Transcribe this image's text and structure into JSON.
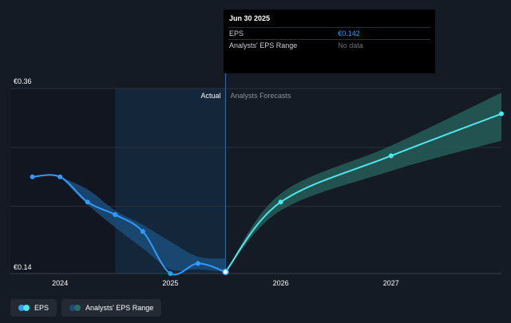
{
  "colors": {
    "background": "#151b24",
    "eps_actual": "#2f9bff",
    "eps_forecast": "#4ee7ea",
    "forecast_band": "#2a6b65",
    "actual_band": "#1b4d7a"
  },
  "tooltip": {
    "date": "Jun 30 2025",
    "rows": [
      {
        "label": "EPS",
        "value": "€0.142"
      },
      {
        "label": "Analysts' EPS Range",
        "value": "No data"
      }
    ]
  },
  "labels": {
    "actual": "Actual",
    "forecast": "Analysts Forecasts"
  },
  "legend": [
    {
      "label": "EPS",
      "icon": "eps-dot-icon"
    },
    {
      "label": "Analysts' EPS Range",
      "icon": "range-dot-icon"
    }
  ],
  "chart_data": {
    "type": "line",
    "x_ticks": [
      "2024",
      "2025",
      "2026",
      "2027"
    ],
    "y_ticks": [
      "€0.36",
      "€0.14"
    ],
    "ylim": [
      0.14,
      0.36
    ],
    "xlim": [
      2023.55,
      2028.0
    ],
    "actual_divider_x": 2025.5,
    "eps_actual": [
      {
        "x": 2023.75,
        "y": 0.255
      },
      {
        "x": 2024.0,
        "y": 0.255
      },
      {
        "x": 2024.25,
        "y": 0.225
      },
      {
        "x": 2024.5,
        "y": 0.21
      },
      {
        "x": 2024.75,
        "y": 0.19
      },
      {
        "x": 2025.0,
        "y": 0.14
      },
      {
        "x": 2025.25,
        "y": 0.152
      },
      {
        "x": 2025.5,
        "y": 0.142
      }
    ],
    "eps_actual_range": [
      {
        "x": 2024.0,
        "low": 0.255,
        "high": 0.255
      },
      {
        "x": 2024.25,
        "low": 0.222,
        "high": 0.24
      },
      {
        "x": 2024.5,
        "low": 0.195,
        "high": 0.215
      },
      {
        "x": 2024.75,
        "low": 0.17,
        "high": 0.198
      },
      {
        "x": 2025.0,
        "low": 0.145,
        "high": 0.178
      },
      {
        "x": 2025.25,
        "low": 0.145,
        "high": 0.16
      },
      {
        "x": 2025.5,
        "low": 0.142,
        "high": 0.158
      }
    ],
    "eps_forecast": [
      {
        "x": 2025.5,
        "y": 0.142
      },
      {
        "x": 2026.0,
        "y": 0.225
      },
      {
        "x": 2027.0,
        "y": 0.28
      },
      {
        "x": 2028.0,
        "y": 0.33
      }
    ],
    "forecast_range": [
      {
        "x": 2025.5,
        "low": 0.142,
        "high": 0.142
      },
      {
        "x": 2026.0,
        "low": 0.215,
        "high": 0.235
      },
      {
        "x": 2027.0,
        "low": 0.262,
        "high": 0.292
      },
      {
        "x": 2028.0,
        "low": 0.298,
        "high": 0.355
      }
    ]
  }
}
